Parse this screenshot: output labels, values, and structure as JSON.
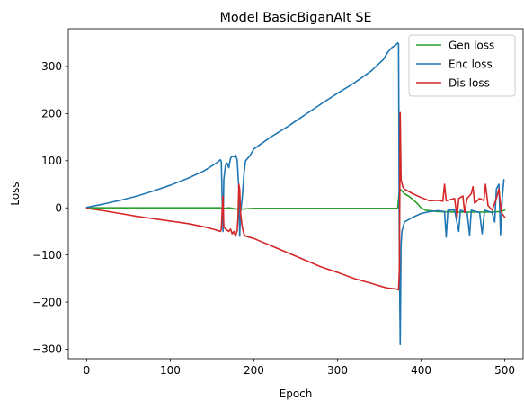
{
  "chart_data": {
    "type": "line",
    "title": "Model BasicBiganAlt SE",
    "xlabel": "Epoch",
    "ylabel": "Loss",
    "xlim": [
      -22,
      522
    ],
    "ylim": [
      -320,
      380
    ],
    "xticks": [
      0,
      100,
      200,
      300,
      400,
      500
    ],
    "yticks": [
      -300,
      -200,
      -100,
      0,
      100,
      200,
      300
    ],
    "tick_labels_x": [
      "0",
      "100",
      "200",
      "300",
      "400",
      "500"
    ],
    "tick_labels_y": [
      "−300",
      "−200",
      "−100",
      "0",
      "100",
      "200",
      "300"
    ],
    "legend_position": "top-right",
    "series": [
      {
        "name": "Gen loss",
        "color": "#2ca02c",
        "points": [
          [
            0,
            0
          ],
          [
            50,
            0
          ],
          [
            100,
            0
          ],
          [
            150,
            0
          ],
          [
            160,
            0
          ],
          [
            165,
            -1
          ],
          [
            170,
            0
          ],
          [
            175,
            -1
          ],
          [
            178,
            -3
          ],
          [
            182,
            -1
          ],
          [
            185,
            -3
          ],
          [
            190,
            -2
          ],
          [
            200,
            -1
          ],
          [
            250,
            -1
          ],
          [
            300,
            -1
          ],
          [
            350,
            -1
          ],
          [
            372,
            -1
          ],
          [
            374,
            40
          ],
          [
            376,
            38
          ],
          [
            380,
            30
          ],
          [
            385,
            25
          ],
          [
            390,
            18
          ],
          [
            395,
            10
          ],
          [
            400,
            0
          ],
          [
            405,
            -5
          ],
          [
            420,
            -8
          ],
          [
            440,
            -9
          ],
          [
            460,
            -9
          ],
          [
            480,
            -9
          ],
          [
            495,
            -8
          ],
          [
            500,
            -5
          ]
        ]
      },
      {
        "name": "Enc loss",
        "color": "#1f77b4",
        "points": [
          [
            0,
            1
          ],
          [
            20,
            8
          ],
          [
            40,
            16
          ],
          [
            60,
            25
          ],
          [
            80,
            36
          ],
          [
            100,
            48
          ],
          [
            120,
            62
          ],
          [
            140,
            78
          ],
          [
            155,
            95
          ],
          [
            160,
            102
          ],
          [
            161,
            98
          ],
          [
            162,
            20
          ],
          [
            163,
            -50
          ],
          [
            164,
            60
          ],
          [
            166,
            90
          ],
          [
            168,
            95
          ],
          [
            170,
            85
          ],
          [
            172,
            105
          ],
          [
            174,
            110
          ],
          [
            176,
            108
          ],
          [
            178,
            112
          ],
          [
            180,
            102
          ],
          [
            182,
            40
          ],
          [
            183,
            -60
          ],
          [
            184,
            -10
          ],
          [
            186,
            20
          ],
          [
            188,
            70
          ],
          [
            190,
            100
          ],
          [
            195,
            110
          ],
          [
            200,
            125
          ],
          [
            220,
            150
          ],
          [
            240,
            172
          ],
          [
            260,
            196
          ],
          [
            280,
            220
          ],
          [
            300,
            243
          ],
          [
            320,
            265
          ],
          [
            340,
            290
          ],
          [
            355,
            315
          ],
          [
            360,
            330
          ],
          [
            365,
            340
          ],
          [
            370,
            346
          ],
          [
            372,
            350
          ],
          [
            373,
            348
          ],
          [
            374,
            -100
          ],
          [
            375,
            -290
          ],
          [
            376,
            -80
          ],
          [
            377,
            -50
          ],
          [
            380,
            -30
          ],
          [
            385,
            -25
          ],
          [
            390,
            -20
          ],
          [
            400,
            -12
          ],
          [
            410,
            -8
          ],
          [
            420,
            -6
          ],
          [
            428,
            -8
          ],
          [
            430,
            -62
          ],
          [
            432,
            -5
          ],
          [
            440,
            -5
          ],
          [
            445,
            -50
          ],
          [
            447,
            -5
          ],
          [
            455,
            -10
          ],
          [
            458,
            -58
          ],
          [
            460,
            -5
          ],
          [
            470,
            -10
          ],
          [
            473,
            -55
          ],
          [
            476,
            -5
          ],
          [
            485,
            -10
          ],
          [
            488,
            -30
          ],
          [
            490,
            40
          ],
          [
            493,
            50
          ],
          [
            495,
            -57
          ],
          [
            497,
            20
          ],
          [
            499,
            60
          ]
        ]
      },
      {
        "name": "Dis loss",
        "color": "#d62728",
        "points": [
          [
            0,
            -1
          ],
          [
            20,
            -6
          ],
          [
            40,
            -12
          ],
          [
            60,
            -18
          ],
          [
            80,
            -23
          ],
          [
            100,
            -28
          ],
          [
            120,
            -33
          ],
          [
            140,
            -40
          ],
          [
            155,
            -47
          ],
          [
            160,
            -50
          ],
          [
            161,
            -45
          ],
          [
            162,
            -5
          ],
          [
            163,
            25
          ],
          [
            164,
            -40
          ],
          [
            166,
            -45
          ],
          [
            170,
            -50
          ],
          [
            172,
            -45
          ],
          [
            174,
            -55
          ],
          [
            176,
            -50
          ],
          [
            178,
            -60
          ],
          [
            180,
            -48
          ],
          [
            181,
            -20
          ],
          [
            182,
            50
          ],
          [
            183,
            40
          ],
          [
            184,
            -10
          ],
          [
            186,
            -40
          ],
          [
            188,
            -55
          ],
          [
            190,
            -60
          ],
          [
            200,
            -65
          ],
          [
            220,
            -80
          ],
          [
            240,
            -95
          ],
          [
            260,
            -110
          ],
          [
            280,
            -125
          ],
          [
            300,
            -137
          ],
          [
            320,
            -150
          ],
          [
            340,
            -160
          ],
          [
            355,
            -168
          ],
          [
            360,
            -170
          ],
          [
            370,
            -172
          ],
          [
            373,
            -174
          ],
          [
            374,
            -130
          ],
          [
            375,
            202
          ],
          [
            376,
            60
          ],
          [
            378,
            45
          ],
          [
            380,
            40
          ],
          [
            390,
            30
          ],
          [
            400,
            22
          ],
          [
            410,
            15
          ],
          [
            420,
            16
          ],
          [
            426,
            14
          ],
          [
            428,
            50
          ],
          [
            430,
            15
          ],
          [
            440,
            20
          ],
          [
            443,
            -20
          ],
          [
            445,
            20
          ],
          [
            450,
            25
          ],
          [
            452,
            -10
          ],
          [
            455,
            20
          ],
          [
            460,
            30
          ],
          [
            462,
            45
          ],
          [
            464,
            10
          ],
          [
            470,
            20
          ],
          [
            475,
            15
          ],
          [
            477,
            50
          ],
          [
            480,
            5
          ],
          [
            485,
            -5
          ],
          [
            490,
            20
          ],
          [
            493,
            40
          ],
          [
            496,
            -10
          ],
          [
            498,
            -15
          ],
          [
            500,
            -20
          ]
        ]
      }
    ]
  }
}
